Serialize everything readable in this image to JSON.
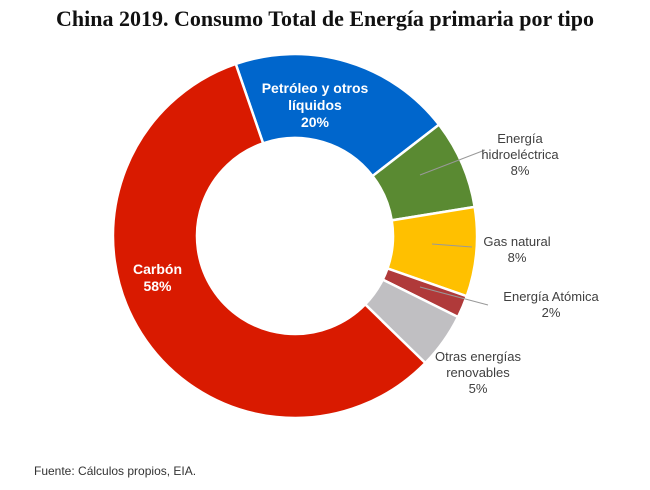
{
  "chart_data": {
    "type": "pie",
    "donut": true,
    "title": "China 2019. Consumo Total de Energía primaria por tipo",
    "slices": [
      {
        "label": "Petróleo y otros líquidos",
        "value": 20,
        "value_label": "20%",
        "color": "#0066CC"
      },
      {
        "label": "Energía hidroeléctrica",
        "value": 8,
        "value_label": "8%",
        "color": "#5A8A32"
      },
      {
        "label": "Gas natural",
        "value": 8,
        "value_label": "8%",
        "color": "#FFC000"
      },
      {
        "label": "Energía Atómica",
        "value": 2,
        "value_label": "2%",
        "color": "#B03A3A"
      },
      {
        "label": "Otras energías renovables",
        "value": 5,
        "value_label": "5%",
        "color": "#C0BFC2"
      },
      {
        "label": "Carbón",
        "value": 58,
        "value_label": "58%",
        "color": "#D91A00"
      }
    ],
    "source": "Fuente: Cálculos propios, EIA."
  }
}
